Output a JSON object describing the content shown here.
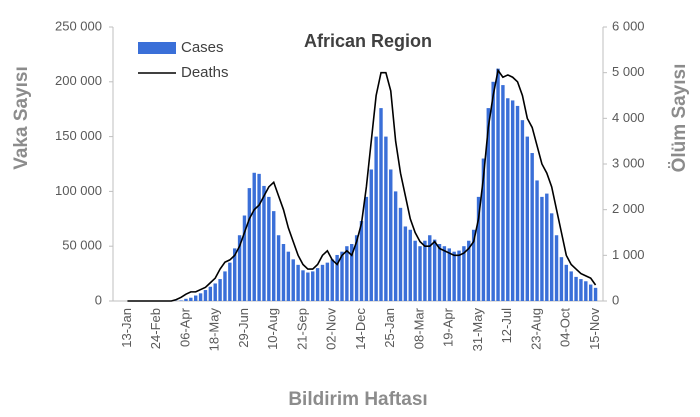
{
  "chart_data": {
    "type": "bar",
    "title": "African Region",
    "y_label": "Vaka Sayısı",
    "y2_label": "Ölüm Sayısı",
    "x_label": "Bildirim Haftası",
    "categories": [
      "13-Jan",
      null,
      null,
      null,
      null,
      null,
      "24-Feb",
      null,
      null,
      null,
      null,
      null,
      "06-Apr",
      null,
      null,
      null,
      null,
      null,
      "18-May",
      null,
      null,
      null,
      null,
      null,
      "29-Jun",
      null,
      null,
      null,
      null,
      null,
      "10-Aug",
      null,
      null,
      null,
      null,
      null,
      "21-Sep",
      null,
      null,
      null,
      null,
      null,
      "02-Nov",
      null,
      null,
      null,
      null,
      null,
      "14-Dec",
      null,
      null,
      null,
      null,
      null,
      "25-Jan",
      null,
      null,
      null,
      null,
      null,
      "08-Mar",
      null,
      null,
      null,
      null,
      null,
      "19-Apr",
      null,
      null,
      null,
      null,
      null,
      "31-May",
      null,
      null,
      null,
      null,
      null,
      "12-Jul",
      null,
      null,
      null,
      null,
      null,
      "23-Aug",
      null,
      null,
      null,
      null,
      null,
      "04-Oct",
      null,
      null,
      null,
      null,
      null,
      "15-Nov"
    ],
    "series": [
      {
        "name": "Cases",
        "type": "bar",
        "color": "#3a6fd8",
        "values": [
          0,
          0,
          0,
          0,
          0,
          0,
          0,
          0,
          0,
          0,
          200,
          500,
          2000,
          3000,
          5000,
          7000,
          10000,
          13000,
          16000,
          20000,
          27000,
          35000,
          48000,
          60000,
          78000,
          103000,
          117000,
          116000,
          105000,
          95000,
          82000,
          60000,
          52000,
          45000,
          38000,
          33000,
          28000,
          26000,
          27000,
          30000,
          33000,
          35000,
          38000,
          42000,
          45000,
          50000,
          52000,
          60000,
          73000,
          95000,
          120000,
          150000,
          176000,
          150000,
          120000,
          100000,
          85000,
          68000,
          65000,
          55000,
          50000,
          55000,
          60000,
          56000,
          52000,
          50000,
          48000,
          45000,
          46000,
          50000,
          55000,
          65000,
          95000,
          130000,
          176000,
          200000,
          212000,
          197000,
          185000,
          183000,
          178000,
          165000,
          150000,
          135000,
          110000,
          95000,
          98000,
          80000,
          60000,
          40000,
          33000,
          27000,
          22000,
          20000,
          18000,
          15000,
          12000
        ]
      },
      {
        "name": "Deaths",
        "type": "line",
        "axis": "y2",
        "color": "#000000",
        "values": [
          0,
          0,
          0,
          0,
          0,
          0,
          0,
          0,
          0,
          0,
          30,
          80,
          150,
          200,
          200,
          250,
          300,
          400,
          500,
          700,
          850,
          900,
          1000,
          1200,
          1500,
          1800,
          2000,
          2100,
          2300,
          2500,
          2600,
          2300,
          2000,
          1600,
          1300,
          1000,
          800,
          700,
          700,
          800,
          1000,
          1100,
          900,
          800,
          1000,
          1100,
          1000,
          1300,
          1700,
          2500,
          3500,
          4500,
          5000,
          5000,
          4600,
          3500,
          2800,
          2300,
          1800,
          1500,
          1300,
          1200,
          1200,
          1300,
          1150,
          1100,
          1050,
          1000,
          1000,
          1050,
          1150,
          1300,
          1800,
          2700,
          3800,
          4500,
          5050,
          4900,
          4950,
          4900,
          4800,
          4500,
          4000,
          3800,
          3400,
          3000,
          2800,
          2500,
          2000,
          1500,
          1000,
          800,
          700,
          600,
          550,
          500,
          350
        ]
      }
    ],
    "ylim": [
      0,
      250000
    ],
    "yticks": [
      0,
      {
        "value": 50000,
        "label": "50 000"
      },
      {
        "value": 100000,
        "label": "100 000"
      },
      {
        "value": 150000,
        "label": "150 000"
      },
      {
        "value": 200000,
        "label": "200 000"
      },
      {
        "value": 250000,
        "label": "250 000"
      }
    ],
    "y2lim": [
      0,
      6000
    ],
    "y2ticks": [
      0,
      {
        "value": 1000,
        "label": "1 000"
      },
      {
        "value": 2000,
        "label": "2 000"
      },
      {
        "value": 3000,
        "label": "3 000"
      },
      {
        "value": 4000,
        "label": "4 000"
      },
      {
        "value": 5000,
        "label": "5 000"
      },
      {
        "value": 6000,
        "label": "6 000"
      }
    ],
    "grid": false,
    "legend": "top-left"
  }
}
